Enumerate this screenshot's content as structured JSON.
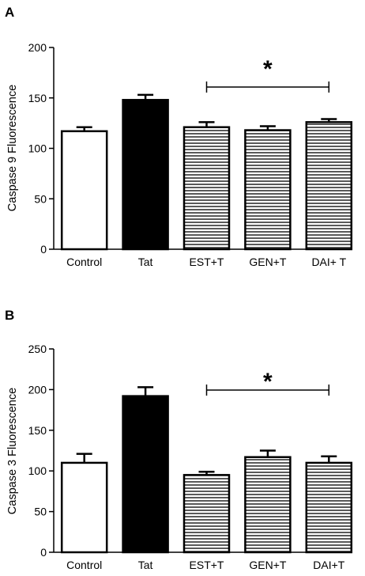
{
  "chart_data": [
    {
      "type": "bar",
      "panel_label": "A",
      "ylabel": "Caspase 9 Fluorescence",
      "ylim": [
        0,
        200
      ],
      "yticks": [
        "0",
        "50",
        "100",
        "150",
        "200"
      ],
      "categories": [
        "Control",
        "Tat",
        "EST+T",
        "GEN+T",
        "DAI+ T"
      ],
      "values": [
        117,
        148,
        121,
        118,
        126
      ],
      "errors": [
        4,
        5,
        5,
        4,
        3
      ],
      "fills": [
        "white",
        "black",
        "hatched",
        "hatched",
        "hatched"
      ],
      "significance": {
        "label": "*",
        "from": "EST+T",
        "to": "DAI+ T"
      }
    },
    {
      "type": "bar",
      "panel_label": "B",
      "ylabel": "Caspase 3 Fluorescence",
      "ylim": [
        0,
        250
      ],
      "yticks": [
        "0",
        "50",
        "100",
        "150",
        "200",
        "250"
      ],
      "categories": [
        "Control",
        "Tat",
        "EST+T",
        "GEN+T",
        "DAI+T"
      ],
      "values": [
        110,
        192,
        95,
        117,
        110
      ],
      "errors": [
        11,
        11,
        4,
        8,
        8
      ],
      "fills": [
        "white",
        "black",
        "hatched",
        "hatched",
        "hatched"
      ],
      "significance": {
        "label": "*",
        "from": "EST+T",
        "to": "DAI+T"
      }
    }
  ],
  "colors": {
    "bar_stroke": "#000000",
    "solid_fill": "#000000",
    "open_fill": "#ffffff",
    "hatch": "#000000"
  }
}
